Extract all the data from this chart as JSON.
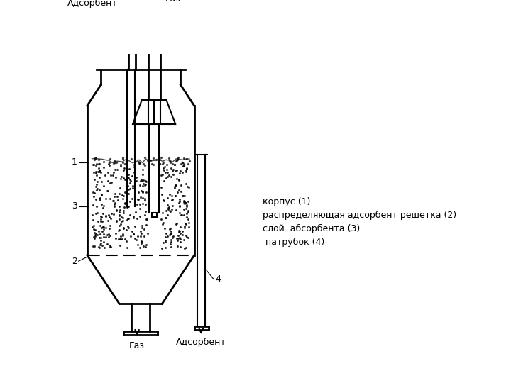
{
  "bg_color": "#ffffff",
  "line_color": "#000000",
  "legend_lines": [
    "корпус (1)",
    "распределяющая адсорбент решетка (2)",
    "слой  абсорбента (3)",
    " патрубок (4)"
  ],
  "label_1": "1",
  "label_2": "2",
  "label_3": "3",
  "label_4": "4",
  "top_left_label": "Адсорбент",
  "top_right_label": "Газ",
  "bottom_left_label": "Газ",
  "bottom_right_label": "Адсорбент"
}
